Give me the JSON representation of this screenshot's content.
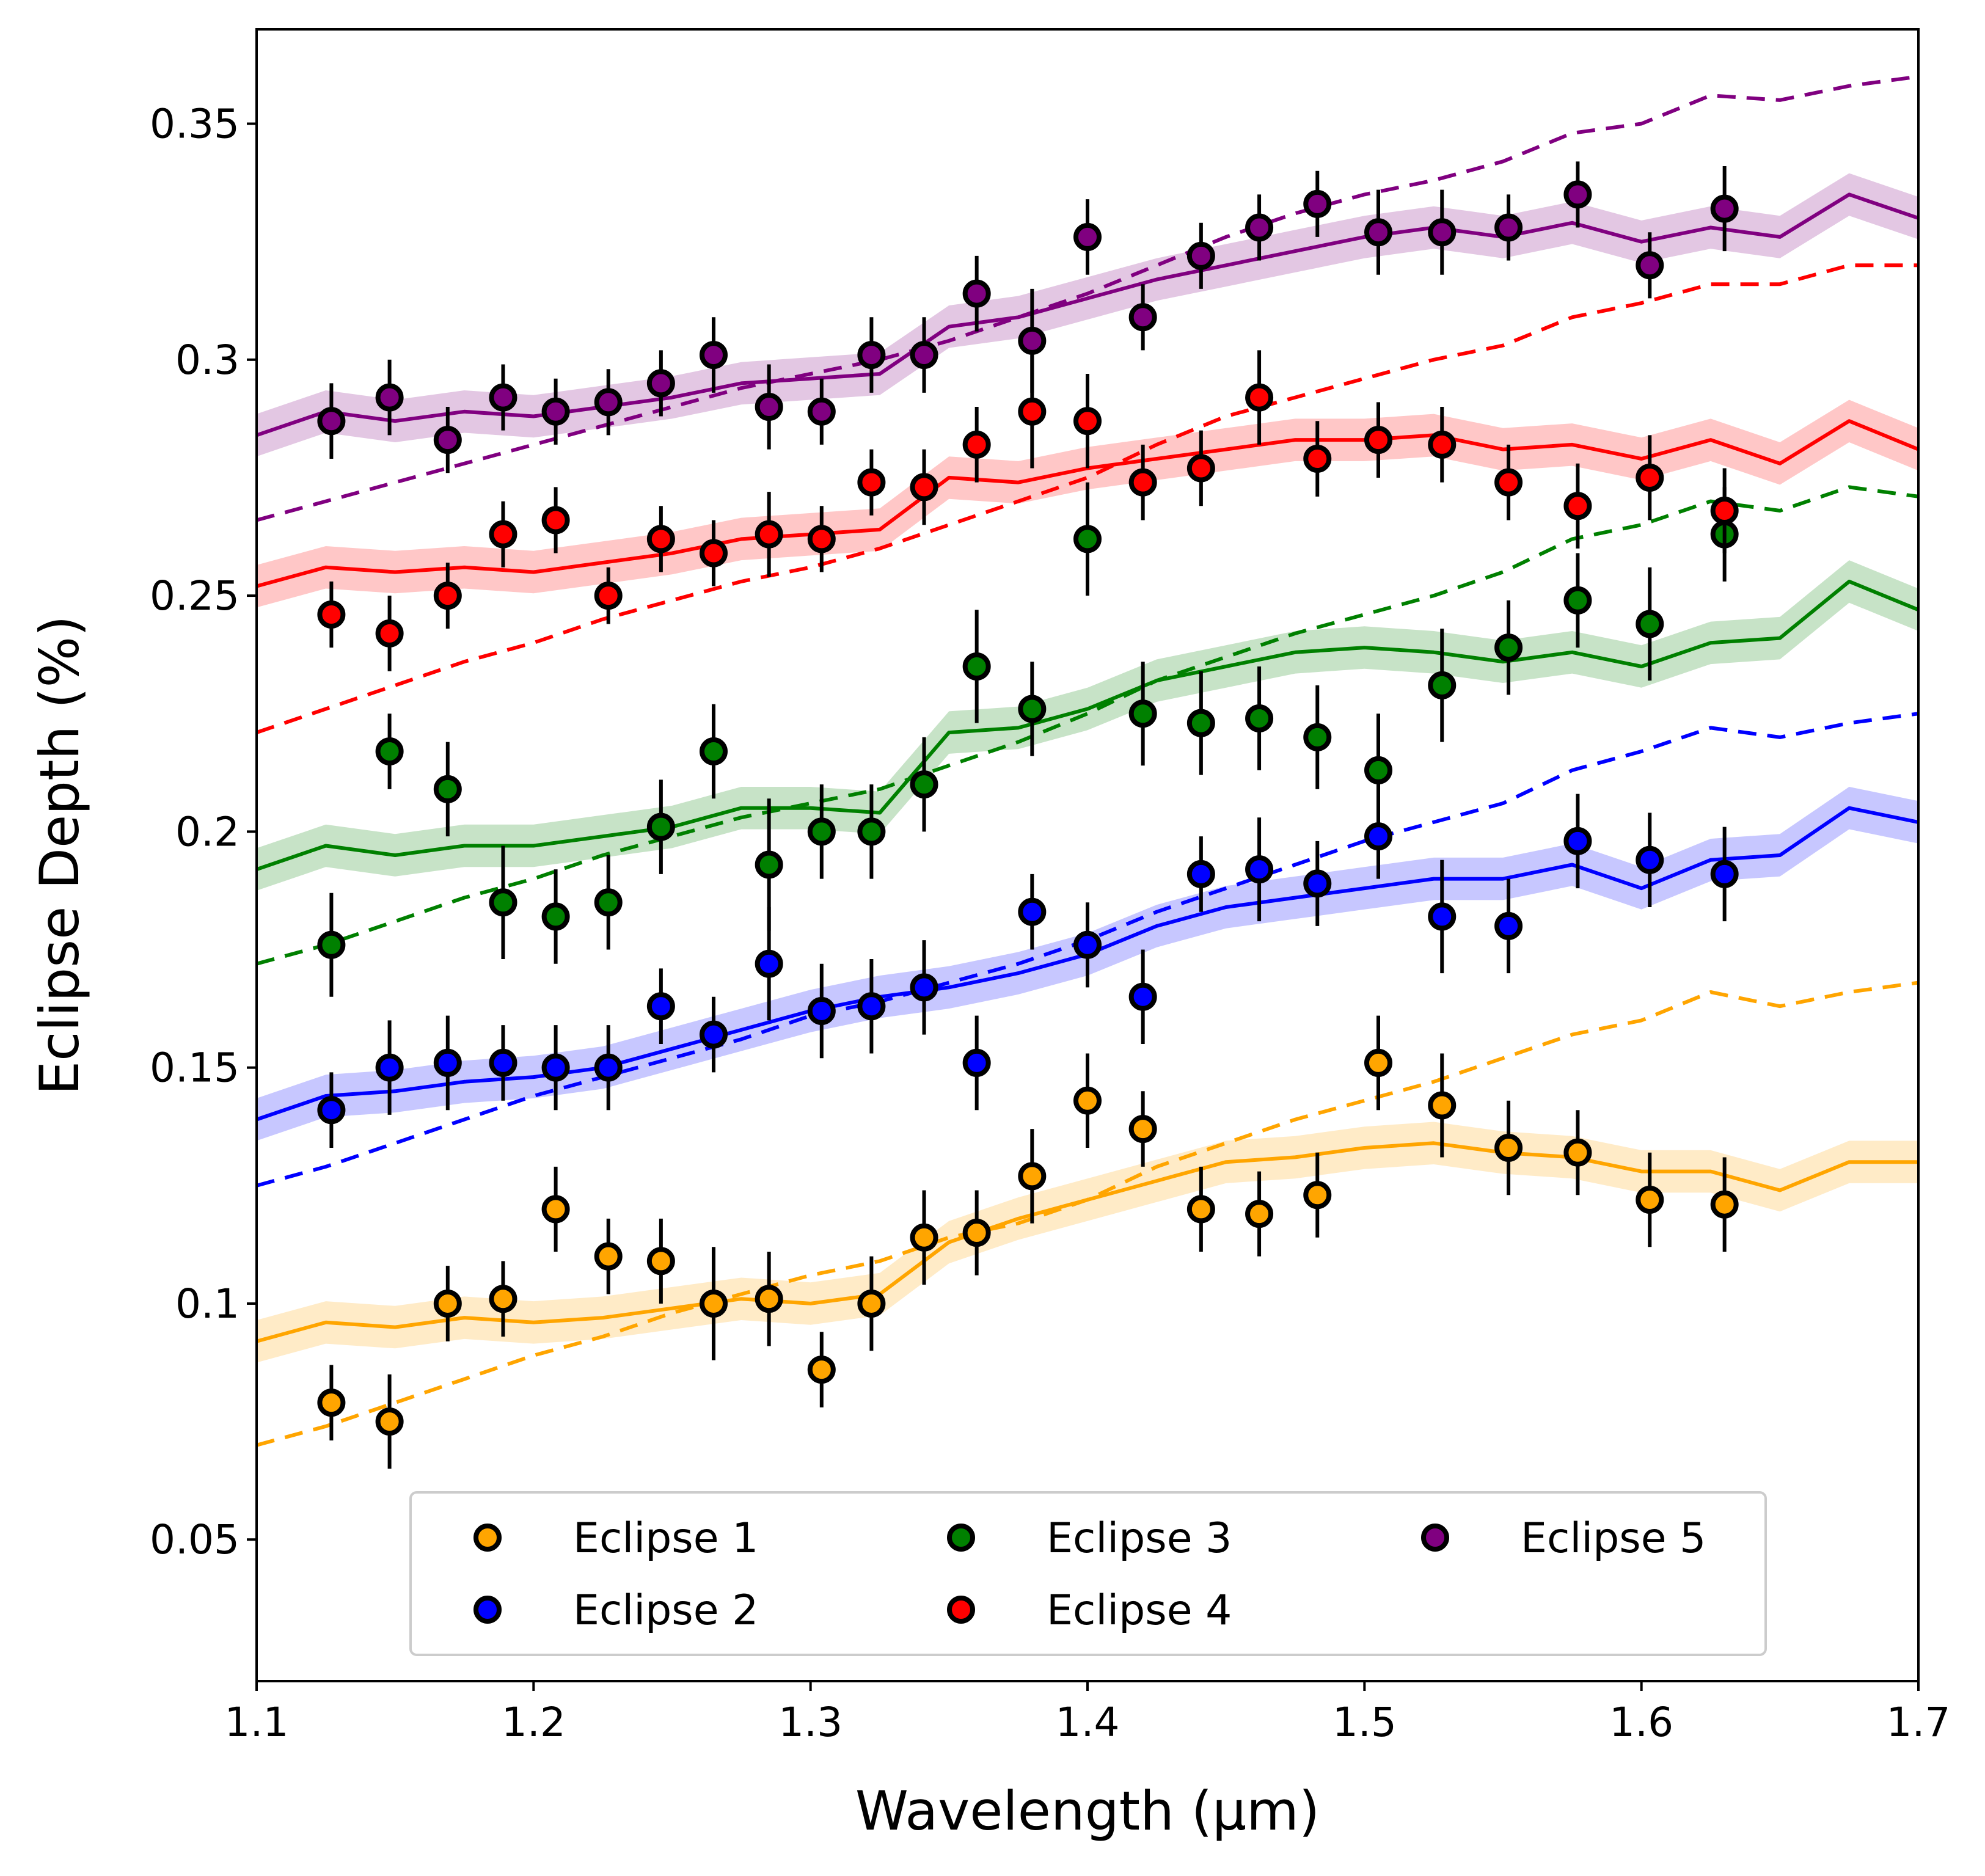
{
  "chart_data": {
    "type": "scatter",
    "xlabel": "Wavelength (μm)",
    "ylabel": "Eclipse Depth (%)",
    "xlim": [
      1.1,
      1.7
    ],
    "ylim": [
      0.02,
      0.37
    ],
    "xticks": [
      1.1,
      1.2,
      1.3,
      1.4,
      1.5,
      1.6,
      1.7
    ],
    "xtick_labels": [
      "1.1",
      "1.2",
      "1.3",
      "1.4",
      "1.5",
      "1.6",
      "1.7"
    ],
    "yticks": [
      0.05,
      0.1,
      0.15,
      0.2,
      0.25,
      0.3,
      0.35
    ],
    "ytick_labels": [
      "0.05",
      "0.1",
      "0.15",
      "0.2",
      "0.25",
      "0.3",
      "0.35"
    ],
    "grid": false,
    "legend": {
      "placement": "bottom-center",
      "columns": 3
    },
    "x": [
      1.127,
      1.148,
      1.169,
      1.189,
      1.208,
      1.227,
      1.246,
      1.265,
      1.285,
      1.304,
      1.322,
      1.341,
      1.36,
      1.38,
      1.4,
      1.42,
      1.441,
      1.462,
      1.483,
      1.505,
      1.528,
      1.552,
      1.577,
      1.603,
      1.63
    ],
    "model_x": [
      1.1,
      1.125,
      1.15,
      1.175,
      1.2,
      1.225,
      1.25,
      1.275,
      1.3,
      1.325,
      1.35,
      1.375,
      1.4,
      1.425,
      1.45,
      1.475,
      1.5,
      1.525,
      1.55,
      1.575,
      1.6,
      1.625,
      1.65,
      1.675,
      1.7
    ],
    "series": [
      {
        "name": "Eclipse 1",
        "color": "#ffa500",
        "y": [
          0.079,
          0.075,
          0.1,
          0.101,
          0.12,
          0.11,
          0.109,
          0.1,
          0.101,
          0.086,
          0.1,
          0.114,
          0.115,
          0.127,
          0.143,
          0.137,
          0.12,
          0.119,
          0.123,
          0.151,
          0.142,
          0.133,
          0.132,
          0.122,
          0.121
        ],
        "yerr": [
          0.008,
          0.01,
          0.008,
          0.008,
          0.009,
          0.008,
          0.009,
          0.012,
          0.01,
          0.008,
          0.01,
          0.01,
          0.009,
          0.01,
          0.01,
          0.008,
          0.009,
          0.009,
          0.009,
          0.01,
          0.011,
          0.01,
          0.009,
          0.01,
          0.01
        ],
        "model_solid": [
          0.092,
          0.096,
          0.095,
          0.097,
          0.096,
          0.097,
          0.099,
          0.101,
          0.1,
          0.102,
          0.113,
          0.118,
          0.122,
          0.126,
          0.13,
          0.131,
          0.133,
          0.134,
          0.132,
          0.131,
          0.128,
          0.128,
          0.124,
          0.13,
          0.13
        ],
        "model_dashed": [
          0.07,
          0.074,
          0.079,
          0.084,
          0.089,
          0.093,
          0.098,
          0.102,
          0.106,
          0.109,
          0.114,
          0.117,
          0.122,
          0.129,
          0.134,
          0.139,
          0.143,
          0.147,
          0.152,
          0.157,
          0.16,
          0.166,
          0.163,
          0.166,
          0.168
        ]
      },
      {
        "name": "Eclipse 2",
        "color": "#0000ff",
        "y": [
          0.141,
          0.15,
          0.151,
          0.151,
          0.15,
          0.15,
          0.163,
          0.157,
          0.172,
          0.162,
          0.163,
          0.167,
          0.151,
          0.183,
          0.176,
          0.165,
          0.191,
          0.192,
          0.189,
          0.199,
          0.182,
          0.18,
          0.198,
          0.194,
          0.191
        ],
        "yerr": [
          0.008,
          0.01,
          0.01,
          0.008,
          0.009,
          0.009,
          0.008,
          0.008,
          0.012,
          0.01,
          0.01,
          0.01,
          0.01,
          0.008,
          0.009,
          0.01,
          0.008,
          0.011,
          0.009,
          0.009,
          0.012,
          0.01,
          0.01,
          0.01,
          0.01
        ],
        "model_solid": [
          0.139,
          0.144,
          0.145,
          0.147,
          0.148,
          0.15,
          0.154,
          0.158,
          0.162,
          0.165,
          0.167,
          0.17,
          0.174,
          0.18,
          0.184,
          0.186,
          0.188,
          0.19,
          0.19,
          0.193,
          0.188,
          0.194,
          0.195,
          0.205,
          0.202
        ],
        "model_dashed": [
          0.125,
          0.129,
          0.134,
          0.139,
          0.144,
          0.148,
          0.152,
          0.156,
          0.161,
          0.164,
          0.168,
          0.172,
          0.177,
          0.183,
          0.188,
          0.193,
          0.198,
          0.202,
          0.206,
          0.213,
          0.217,
          0.222,
          0.22,
          0.223,
          0.225
        ]
      },
      {
        "name": "Eclipse 3",
        "color": "#008000",
        "y": [
          0.176,
          0.217,
          0.209,
          0.185,
          0.182,
          0.185,
          0.201,
          0.217,
          0.193,
          0.2,
          0.2,
          0.21,
          0.235,
          0.226,
          0.262,
          0.225,
          0.223,
          0.224,
          0.22,
          0.213,
          0.231,
          0.239,
          0.249,
          0.244,
          0.263
        ],
        "yerr": [
          0.011,
          0.008,
          0.01,
          0.012,
          0.01,
          0.01,
          0.01,
          0.01,
          0.014,
          0.01,
          0.01,
          0.01,
          0.012,
          0.01,
          0.012,
          0.011,
          0.011,
          0.011,
          0.011,
          0.012,
          0.012,
          0.01,
          0.01,
          0.012,
          0.01
        ],
        "model_solid": [
          0.192,
          0.197,
          0.195,
          0.197,
          0.197,
          0.199,
          0.201,
          0.205,
          0.205,
          0.204,
          0.221,
          0.222,
          0.226,
          0.232,
          0.235,
          0.238,
          0.239,
          0.238,
          0.236,
          0.238,
          0.235,
          0.24,
          0.241,
          0.253,
          0.247
        ],
        "model_dashed": [
          0.172,
          0.176,
          0.181,
          0.186,
          0.19,
          0.195,
          0.199,
          0.203,
          0.206,
          0.209,
          0.214,
          0.219,
          0.225,
          0.232,
          0.237,
          0.242,
          0.246,
          0.25,
          0.255,
          0.262,
          0.265,
          0.27,
          0.268,
          0.273,
          0.271
        ]
      },
      {
        "name": "Eclipse 4",
        "color": "#ff0000",
        "y": [
          0.246,
          0.242,
          0.25,
          0.263,
          0.266,
          0.25,
          0.262,
          0.259,
          0.263,
          0.262,
          0.274,
          0.273,
          0.282,
          0.289,
          0.287,
          0.274,
          0.277,
          0.292,
          0.279,
          0.283,
          0.282,
          0.274,
          0.269,
          0.275,
          0.268
        ],
        "yerr": [
          0.007,
          0.008,
          0.007,
          0.007,
          0.007,
          0.006,
          0.007,
          0.007,
          0.009,
          0.007,
          0.007,
          0.008,
          0.008,
          0.012,
          0.01,
          0.008,
          0.008,
          0.01,
          0.008,
          0.008,
          0.008,
          0.008,
          0.009,
          0.009,
          0.009
        ],
        "model_solid": [
          0.252,
          0.256,
          0.255,
          0.256,
          0.255,
          0.257,
          0.259,
          0.262,
          0.263,
          0.264,
          0.275,
          0.274,
          0.277,
          0.279,
          0.281,
          0.283,
          0.283,
          0.284,
          0.281,
          0.282,
          0.279,
          0.283,
          0.278,
          0.287,
          0.281
        ],
        "model_dashed": [
          0.221,
          0.226,
          0.231,
          0.236,
          0.24,
          0.245,
          0.249,
          0.253,
          0.256,
          0.26,
          0.265,
          0.27,
          0.275,
          0.282,
          0.288,
          0.292,
          0.296,
          0.3,
          0.303,
          0.309,
          0.312,
          0.316,
          0.316,
          0.32,
          0.32
        ]
      },
      {
        "name": "Eclipse 5",
        "color": "#800080",
        "y": [
          0.287,
          0.292,
          0.283,
          0.292,
          0.289,
          0.291,
          0.295,
          0.301,
          0.29,
          0.289,
          0.301,
          0.301,
          0.314,
          0.304,
          0.326,
          0.309,
          0.322,
          0.328,
          0.333,
          0.327,
          0.327,
          0.328,
          0.335,
          0.32,
          0.332
        ],
        "yerr": [
          0.008,
          0.008,
          0.007,
          0.007,
          0.007,
          0.007,
          0.007,
          0.008,
          0.009,
          0.007,
          0.008,
          0.008,
          0.008,
          0.011,
          0.008,
          0.007,
          0.007,
          0.007,
          0.007,
          0.009,
          0.009,
          0.007,
          0.007,
          0.007,
          0.009
        ],
        "model_solid": [
          0.284,
          0.289,
          0.287,
          0.289,
          0.288,
          0.29,
          0.292,
          0.295,
          0.296,
          0.297,
          0.307,
          0.309,
          0.313,
          0.317,
          0.32,
          0.323,
          0.326,
          0.328,
          0.326,
          0.329,
          0.325,
          0.328,
          0.326,
          0.335,
          0.33
        ],
        "model_dashed": [
          0.266,
          0.27,
          0.274,
          0.278,
          0.282,
          0.286,
          0.29,
          0.294,
          0.297,
          0.3,
          0.304,
          0.309,
          0.314,
          0.32,
          0.326,
          0.331,
          0.335,
          0.338,
          0.342,
          0.348,
          0.35,
          0.356,
          0.355,
          0.358,
          0.36
        ]
      }
    ]
  }
}
